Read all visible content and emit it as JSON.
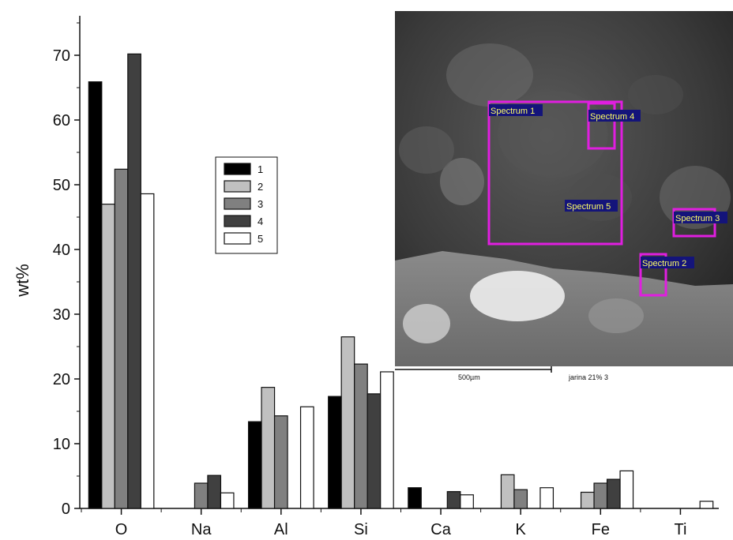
{
  "chart_data": {
    "type": "bar",
    "categories": [
      "O",
      "Na",
      "Al",
      "Si",
      "Ca",
      "K",
      "Fe",
      "Ti"
    ],
    "ylabel": "wt%",
    "xlabel": "",
    "ylim": [
      0,
      75
    ],
    "yticks": [
      0,
      10,
      20,
      30,
      40,
      50,
      60,
      70
    ],
    "grid": false,
    "legend_position": "upper-left-center",
    "series": [
      {
        "name": "1",
        "values": [
          65.9,
          null,
          13.4,
          17.3,
          3.2,
          null,
          null,
          null
        ]
      },
      {
        "name": "2",
        "values": [
          47.0,
          null,
          18.7,
          26.5,
          null,
          5.2,
          2.5,
          null
        ]
      },
      {
        "name": "3",
        "values": [
          52.4,
          3.9,
          14.3,
          22.3,
          null,
          2.9,
          3.9,
          null
        ]
      },
      {
        "name": "4",
        "values": [
          70.2,
          5.1,
          null,
          17.7,
          2.6,
          null,
          4.5,
          null
        ]
      },
      {
        "name": "5",
        "values": [
          48.6,
          2.4,
          15.7,
          21.1,
          2.1,
          3.2,
          5.8,
          1.1
        ]
      }
    ],
    "colors": [
      "#000000",
      "#c0c0c0",
      "#808080",
      "#404040",
      "#ffffff"
    ],
    "inset_image": {
      "description_labels": [
        "Spectrum 1",
        "Spectrum 4",
        "Spectrum 5",
        "Spectrum 3",
        "Spectrum 2"
      ],
      "scale_bar_label": "500µm",
      "caption": "jarina 21% 3",
      "box_color": "#e01ee0"
    }
  }
}
